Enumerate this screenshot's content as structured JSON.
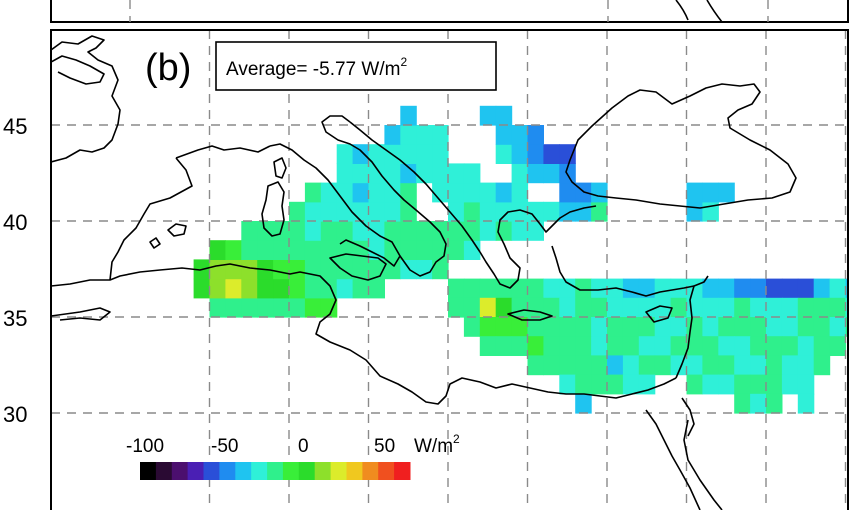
{
  "panel": {
    "label": "(b)",
    "average_text": "Average= -5.77 W/m",
    "average_sup": "2"
  },
  "axes": {
    "lat_ticks": [
      "45",
      "40",
      "35",
      "30"
    ]
  },
  "colorbar": {
    "tick_labels": [
      "-100",
      "-50",
      "0",
      "50"
    ],
    "unit": "W/m",
    "unit_sup": "2",
    "colors": [
      "#000000",
      "#2a0a33",
      "#4b0f6e",
      "#4a1fb4",
      "#2a4fd8",
      "#1f8cf0",
      "#1fc4f0",
      "#2ff0d8",
      "#2ff08c",
      "#39ee39",
      "#2bdc2b",
      "#8de02b",
      "#dcec2b",
      "#f0c81f",
      "#f08c1f",
      "#f0501f",
      "#f01f1f"
    ]
  },
  "map_data": {
    "lon_range": [
      -10,
      38
    ],
    "lat_range": [
      26,
      49
    ],
    "grid_step_deg": 5,
    "cell_size_deg": 1,
    "cells": [
      [
        -5,
        35,
        -5
      ],
      [
        -4,
        35,
        -5
      ],
      [
        -3,
        35,
        -2
      ],
      [
        -2,
        35,
        0
      ],
      [
        -1,
        35,
        0
      ],
      [
        0,
        35,
        5
      ],
      [
        1,
        35,
        10
      ],
      [
        2,
        35,
        15
      ],
      [
        -6,
        36,
        30
      ],
      [
        -5,
        36,
        40
      ],
      [
        -4,
        36,
        45
      ],
      [
        -3,
        36,
        40
      ],
      [
        -2,
        36,
        30
      ],
      [
        -1,
        36,
        25
      ],
      [
        0,
        36,
        15
      ],
      [
        1,
        36,
        5
      ],
      [
        2,
        36,
        0
      ],
      [
        3,
        36,
        -10
      ],
      [
        4,
        36,
        -5
      ],
      [
        5,
        36,
        -3
      ],
      [
        -6,
        37,
        25
      ],
      [
        -5,
        37,
        35
      ],
      [
        -4,
        37,
        40
      ],
      [
        -3,
        37,
        35
      ],
      [
        -2,
        37,
        25
      ],
      [
        -1,
        37,
        15
      ],
      [
        0,
        37,
        10
      ],
      [
        1,
        37,
        5
      ],
      [
        2,
        37,
        0
      ],
      [
        3,
        37,
        -5
      ],
      [
        4,
        37,
        -3
      ],
      [
        5,
        37,
        0
      ],
      [
        6,
        37,
        -5
      ],
      [
        7,
        37,
        -10
      ],
      [
        8,
        37,
        -8
      ],
      [
        9,
        37,
        -5
      ],
      [
        -5,
        38,
        20
      ],
      [
        -4,
        38,
        10
      ],
      [
        -3,
        38,
        5
      ],
      [
        -2,
        38,
        0
      ],
      [
        -1,
        38,
        -5
      ],
      [
        0,
        38,
        -5
      ],
      [
        1,
        38,
        -3
      ],
      [
        2,
        38,
        0
      ],
      [
        3,
        38,
        5
      ],
      [
        4,
        38,
        -5
      ],
      [
        5,
        38,
        -8
      ],
      [
        6,
        38,
        -5
      ],
      [
        7,
        38,
        -3
      ],
      [
        8,
        38,
        -5
      ],
      [
        9,
        38,
        0
      ],
      [
        10,
        38,
        -5
      ],
      [
        11,
        38,
        -8
      ],
      [
        -3,
        39,
        0
      ],
      [
        -2,
        39,
        -5
      ],
      [
        -1,
        39,
        -3
      ],
      [
        0,
        39,
        -5
      ],
      [
        1,
        39,
        -8
      ],
      [
        2,
        39,
        -3
      ],
      [
        3,
        39,
        -5
      ],
      [
        4,
        39,
        -10
      ],
      [
        5,
        39,
        -8
      ],
      [
        6,
        39,
        -5
      ],
      [
        7,
        39,
        -3
      ],
      [
        8,
        39,
        -5
      ],
      [
        9,
        39,
        0
      ],
      [
        10,
        39,
        -5
      ],
      [
        11,
        39,
        -5
      ],
      [
        12,
        39,
        -10
      ],
      [
        13,
        39,
        -5
      ],
      [
        14,
        39,
        -8
      ],
      [
        15,
        39,
        -10
      ],
      [
        0,
        40,
        -5
      ],
      [
        1,
        40,
        -8
      ],
      [
        2,
        40,
        -15
      ],
      [
        3,
        40,
        -12
      ],
      [
        4,
        40,
        -10
      ],
      [
        5,
        40,
        -8
      ],
      [
        6,
        40,
        -10
      ],
      [
        7,
        40,
        -5
      ],
      [
        10,
        40,
        -8
      ],
      [
        11,
        40,
        -5
      ],
      [
        12,
        40,
        -10
      ],
      [
        13,
        40,
        -15
      ],
      [
        14,
        40,
        -10
      ],
      [
        15,
        40,
        -12
      ],
      [
        16,
        40,
        -15
      ],
      [
        17,
        40,
        -20
      ],
      [
        18,
        40,
        -25
      ],
      [
        19,
        40,
        -5
      ],
      [
        25,
        40,
        -20
      ],
      [
        26,
        40,
        -15
      ],
      [
        1,
        41,
        -5
      ],
      [
        2,
        41,
        -8
      ],
      [
        3,
        41,
        -15
      ],
      [
        4,
        41,
        -20
      ],
      [
        5,
        41,
        -10
      ],
      [
        6,
        41,
        -12
      ],
      [
        7,
        41,
        -5
      ],
      [
        9,
        41,
        -8
      ],
      [
        10,
        41,
        -10
      ],
      [
        11,
        41,
        -12
      ],
      [
        12,
        41,
        -15
      ],
      [
        13,
        41,
        -20
      ],
      [
        14,
        41,
        -10
      ],
      [
        17,
        41,
        -35
      ],
      [
        18,
        41,
        -40
      ],
      [
        19,
        41,
        -25
      ],
      [
        25,
        41,
        -20
      ],
      [
        26,
        41,
        -25
      ],
      [
        27,
        41,
        -20
      ],
      [
        3,
        42,
        -12
      ],
      [
        4,
        42,
        -8
      ],
      [
        5,
        42,
        -10
      ],
      [
        6,
        42,
        -15
      ],
      [
        7,
        42,
        -20
      ],
      [
        8,
        42,
        -8
      ],
      [
        9,
        42,
        -10
      ],
      [
        10,
        42,
        -12
      ],
      [
        11,
        42,
        -10
      ],
      [
        14,
        42,
        -15
      ],
      [
        15,
        42,
        -25
      ],
      [
        16,
        42,
        -30
      ],
      [
        17,
        42,
        -35
      ],
      [
        3,
        43,
        -15
      ],
      [
        4,
        43,
        -20
      ],
      [
        5,
        43,
        -15
      ],
      [
        6,
        43,
        -10
      ],
      [
        7,
        43,
        -10
      ],
      [
        8,
        43,
        -8
      ],
      [
        9,
        43,
        -12
      ],
      [
        13,
        43,
        -15
      ],
      [
        14,
        43,
        -20
      ],
      [
        15,
        43,
        -35
      ],
      [
        16,
        43,
        -55
      ],
      [
        17,
        43,
        -50
      ],
      [
        6,
        44,
        -25
      ],
      [
        7,
        44,
        -15
      ],
      [
        8,
        44,
        -10
      ],
      [
        9,
        44,
        -15
      ],
      [
        13,
        44,
        -25
      ],
      [
        14,
        44,
        -30
      ],
      [
        15,
        44,
        -35
      ],
      [
        7,
        45,
        -30
      ],
      [
        12,
        45,
        -25
      ],
      [
        13,
        45,
        -30
      ],
      [
        10,
        36,
        -5
      ],
      [
        11,
        36,
        -3
      ],
      [
        12,
        36,
        0
      ],
      [
        13,
        36,
        5
      ],
      [
        14,
        36,
        0
      ],
      [
        15,
        36,
        -5
      ],
      [
        16,
        36,
        -8
      ],
      [
        17,
        36,
        -10
      ],
      [
        18,
        36,
        -5
      ],
      [
        19,
        36,
        -8
      ],
      [
        20,
        36,
        -10
      ],
      [
        21,
        36,
        -20
      ],
      [
        22,
        36,
        -25
      ],
      [
        23,
        36,
        -15
      ],
      [
        24,
        36,
        -10
      ],
      [
        25,
        36,
        -15
      ],
      [
        26,
        36,
        -20
      ],
      [
        27,
        36,
        -25
      ],
      [
        28,
        36,
        -35
      ],
      [
        29,
        36,
        -40
      ],
      [
        30,
        36,
        -45
      ],
      [
        31,
        36,
        -50
      ],
      [
        32,
        36,
        -55
      ],
      [
        33,
        36,
        -20
      ],
      [
        34,
        36,
        -10
      ],
      [
        35,
        36,
        -30
      ],
      [
        10,
        35,
        0
      ],
      [
        11,
        35,
        5
      ],
      [
        12,
        35,
        45
      ],
      [
        13,
        35,
        30
      ],
      [
        14,
        35,
        5
      ],
      [
        15,
        35,
        0
      ],
      [
        16,
        35,
        -5
      ],
      [
        17,
        35,
        -8
      ],
      [
        18,
        35,
        -5
      ],
      [
        19,
        35,
        -3
      ],
      [
        20,
        35,
        -10
      ],
      [
        21,
        35,
        -15
      ],
      [
        22,
        35,
        -10
      ],
      [
        23,
        35,
        -8
      ],
      [
        24,
        35,
        -5
      ],
      [
        25,
        35,
        -8
      ],
      [
        26,
        35,
        -10
      ],
      [
        27,
        35,
        -8
      ],
      [
        28,
        35,
        -5
      ],
      [
        29,
        35,
        -8
      ],
      [
        30,
        35,
        -10
      ],
      [
        31,
        35,
        -8
      ],
      [
        32,
        35,
        -5
      ],
      [
        33,
        35,
        -3
      ],
      [
        34,
        35,
        -5
      ],
      [
        35,
        35,
        -8
      ],
      [
        11,
        34,
        0
      ],
      [
        12,
        34,
        10
      ],
      [
        13,
        34,
        15
      ],
      [
        14,
        34,
        10
      ],
      [
        15,
        34,
        5
      ],
      [
        16,
        34,
        0
      ],
      [
        17,
        34,
        -3
      ],
      [
        18,
        34,
        -5
      ],
      [
        19,
        34,
        -8
      ],
      [
        20,
        34,
        -5
      ],
      [
        21,
        34,
        -3
      ],
      [
        22,
        34,
        -5
      ],
      [
        23,
        34,
        -8
      ],
      [
        24,
        34,
        -10
      ],
      [
        25,
        34,
        -5
      ],
      [
        26,
        34,
        -8
      ],
      [
        27,
        34,
        -5
      ],
      [
        28,
        34,
        -3
      ],
      [
        29,
        34,
        -5
      ],
      [
        30,
        34,
        -8
      ],
      [
        31,
        34,
        -10
      ],
      [
        32,
        34,
        -5
      ],
      [
        33,
        34,
        -3
      ],
      [
        34,
        34,
        -8
      ],
      [
        35,
        34,
        -5
      ],
      [
        12,
        33,
        -5
      ],
      [
        13,
        33,
        0
      ],
      [
        14,
        33,
        5
      ],
      [
        15,
        33,
        10
      ],
      [
        16,
        33,
        5
      ],
      [
        17,
        33,
        0
      ],
      [
        18,
        33,
        -5
      ],
      [
        19,
        33,
        -10
      ],
      [
        20,
        33,
        -5
      ],
      [
        21,
        33,
        -3
      ],
      [
        22,
        33,
        -8
      ],
      [
        23,
        33,
        -10
      ],
      [
        24,
        33,
        -5
      ],
      [
        25,
        33,
        -3
      ],
      [
        26,
        33,
        -5
      ],
      [
        27,
        33,
        -8
      ],
      [
        28,
        33,
        -10
      ],
      [
        29,
        33,
        -5
      ],
      [
        30,
        33,
        -3
      ],
      [
        31,
        33,
        -5
      ],
      [
        32,
        33,
        -8
      ],
      [
        33,
        33,
        -5
      ],
      [
        34,
        33,
        -3
      ],
      [
        15,
        32,
        -5
      ],
      [
        16,
        32,
        0
      ],
      [
        17,
        32,
        5
      ],
      [
        18,
        32,
        0
      ],
      [
        19,
        32,
        -5
      ],
      [
        20,
        32,
        -30
      ],
      [
        21,
        32,
        -10
      ],
      [
        22,
        32,
        -5
      ],
      [
        23,
        32,
        -3
      ],
      [
        24,
        32,
        -8
      ],
      [
        25,
        32,
        -10
      ],
      [
        26,
        32,
        -5
      ],
      [
        27,
        32,
        -3
      ],
      [
        28,
        32,
        -8
      ],
      [
        29,
        32,
        -10
      ],
      [
        30,
        32,
        -5
      ],
      [
        31,
        32,
        -8
      ],
      [
        32,
        32,
        -10
      ],
      [
        33,
        32,
        -5
      ],
      [
        17,
        31,
        -10
      ],
      [
        18,
        31,
        -5
      ],
      [
        19,
        31,
        0
      ],
      [
        20,
        31,
        -5
      ],
      [
        21,
        31,
        -15
      ],
      [
        22,
        31,
        -8
      ],
      [
        25,
        31,
        -5
      ],
      [
        26,
        31,
        -8
      ],
      [
        27,
        31,
        -10
      ],
      [
        28,
        31,
        -5
      ],
      [
        29,
        31,
        -3
      ],
      [
        30,
        31,
        -5
      ],
      [
        31,
        31,
        -8
      ],
      [
        32,
        31,
        -10
      ],
      [
        18,
        30,
        -25
      ],
      [
        28,
        30,
        -5
      ],
      [
        29,
        30,
        -8
      ],
      [
        30,
        30,
        -5
      ],
      [
        32,
        30,
        -10
      ]
    ]
  }
}
